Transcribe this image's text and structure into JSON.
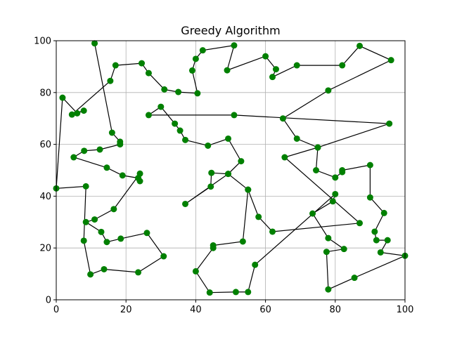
{
  "chart_data": {
    "type": "line",
    "title": "Greedy Algorithm",
    "xlabel": "",
    "ylabel": "",
    "xlim": [
      0,
      100
    ],
    "ylim": [
      0,
      100
    ],
    "xticks": [
      "0",
      "20",
      "40",
      "60",
      "80",
      "100"
    ],
    "yticks": [
      "0",
      "20",
      "40",
      "60",
      "80",
      "100"
    ],
    "grid": true,
    "line_color": "#000000",
    "marker_color": "#008000",
    "series": [
      {
        "points": [
          [
            11,
            99
          ],
          [
            16,
            64.5
          ],
          [
            18.3,
            61
          ],
          [
            18.3,
            60
          ],
          [
            12.5,
            58
          ],
          [
            8,
            57.5
          ],
          [
            5,
            55
          ],
          [
            14.5,
            51
          ],
          [
            19,
            48
          ],
          [
            23.5,
            47
          ],
          [
            24,
            45.8
          ],
          [
            24,
            48.7
          ],
          [
            16.5,
            35
          ],
          [
            11,
            31
          ],
          [
            8.5,
            30
          ],
          [
            12.9,
            26.2
          ],
          [
            14.5,
            22.3
          ],
          [
            18.5,
            23.6
          ],
          [
            26,
            25.8
          ],
          [
            30.8,
            16.8
          ],
          [
            23.5,
            10.6
          ],
          [
            13.7,
            11.8
          ],
          [
            9.8,
            9.8
          ],
          [
            7.9,
            22.8
          ],
          [
            8.5,
            43.8
          ],
          [
            0,
            43
          ],
          [
            1.8,
            78
          ],
          [
            6,
            72
          ],
          [
            7.9,
            73
          ],
          [
            4.5,
            71.5
          ],
          [
            15.5,
            84.5
          ],
          [
            17,
            90.5
          ],
          [
            24.5,
            91.3
          ],
          [
            26.5,
            87.5
          ],
          [
            31,
            81.2
          ],
          [
            35,
            80.2
          ],
          [
            40.5,
            79.7
          ],
          [
            39,
            88.5
          ],
          [
            40,
            93
          ],
          [
            42,
            96.3
          ],
          [
            51,
            98.2
          ],
          [
            49,
            88.6
          ],
          [
            60,
            94
          ],
          [
            63,
            89
          ],
          [
            62,
            86
          ],
          [
            69,
            90.5
          ],
          [
            82,
            90.5
          ],
          [
            87,
            98
          ],
          [
            96,
            92.5
          ],
          [
            78,
            80.8
          ],
          [
            65,
            70
          ],
          [
            69,
            62.2
          ],
          [
            75,
            58.8
          ],
          [
            95.5,
            68
          ],
          [
            51,
            71.3
          ],
          [
            26.5,
            71.3
          ],
          [
            30,
            74.5
          ],
          [
            34,
            68
          ],
          [
            35.5,
            65.3
          ],
          [
            37,
            61.7
          ],
          [
            43.5,
            59.5
          ],
          [
            49.3,
            62.2
          ],
          [
            53,
            53.5
          ],
          [
            49.3,
            48.6
          ],
          [
            44.5,
            49
          ],
          [
            44.3,
            43.7
          ],
          [
            37,
            37
          ],
          [
            49.3,
            48.6
          ],
          [
            55,
            42.5
          ],
          [
            58,
            32
          ],
          [
            62,
            26.3
          ],
          [
            87,
            29.6
          ],
          [
            65.5,
            55
          ],
          [
            75,
            58.8
          ],
          [
            74.5,
            50
          ],
          [
            80,
            47.2
          ],
          [
            82,
            49.3
          ],
          [
            82,
            50
          ],
          [
            90,
            52
          ],
          [
            90,
            39.5
          ],
          [
            94,
            33.5
          ],
          [
            91.3,
            26.3
          ],
          [
            91.8,
            23
          ],
          [
            95,
            23
          ],
          [
            93,
            18.3
          ],
          [
            100,
            17
          ],
          [
            85.5,
            8.5
          ],
          [
            78,
            4
          ],
          [
            77.5,
            18.5
          ],
          [
            82.5,
            19.6
          ],
          [
            78,
            23.8
          ],
          [
            73.5,
            33.3
          ],
          [
            79.3,
            38
          ],
          [
            80,
            40.8
          ],
          [
            57,
            13.5
          ],
          [
            55,
            3
          ],
          [
            51.5,
            3
          ],
          [
            44,
            2.8
          ],
          [
            40,
            11
          ],
          [
            45,
            20
          ],
          [
            45,
            21
          ],
          [
            53.5,
            22.5
          ],
          [
            55,
            42.5
          ]
        ]
      }
    ]
  }
}
